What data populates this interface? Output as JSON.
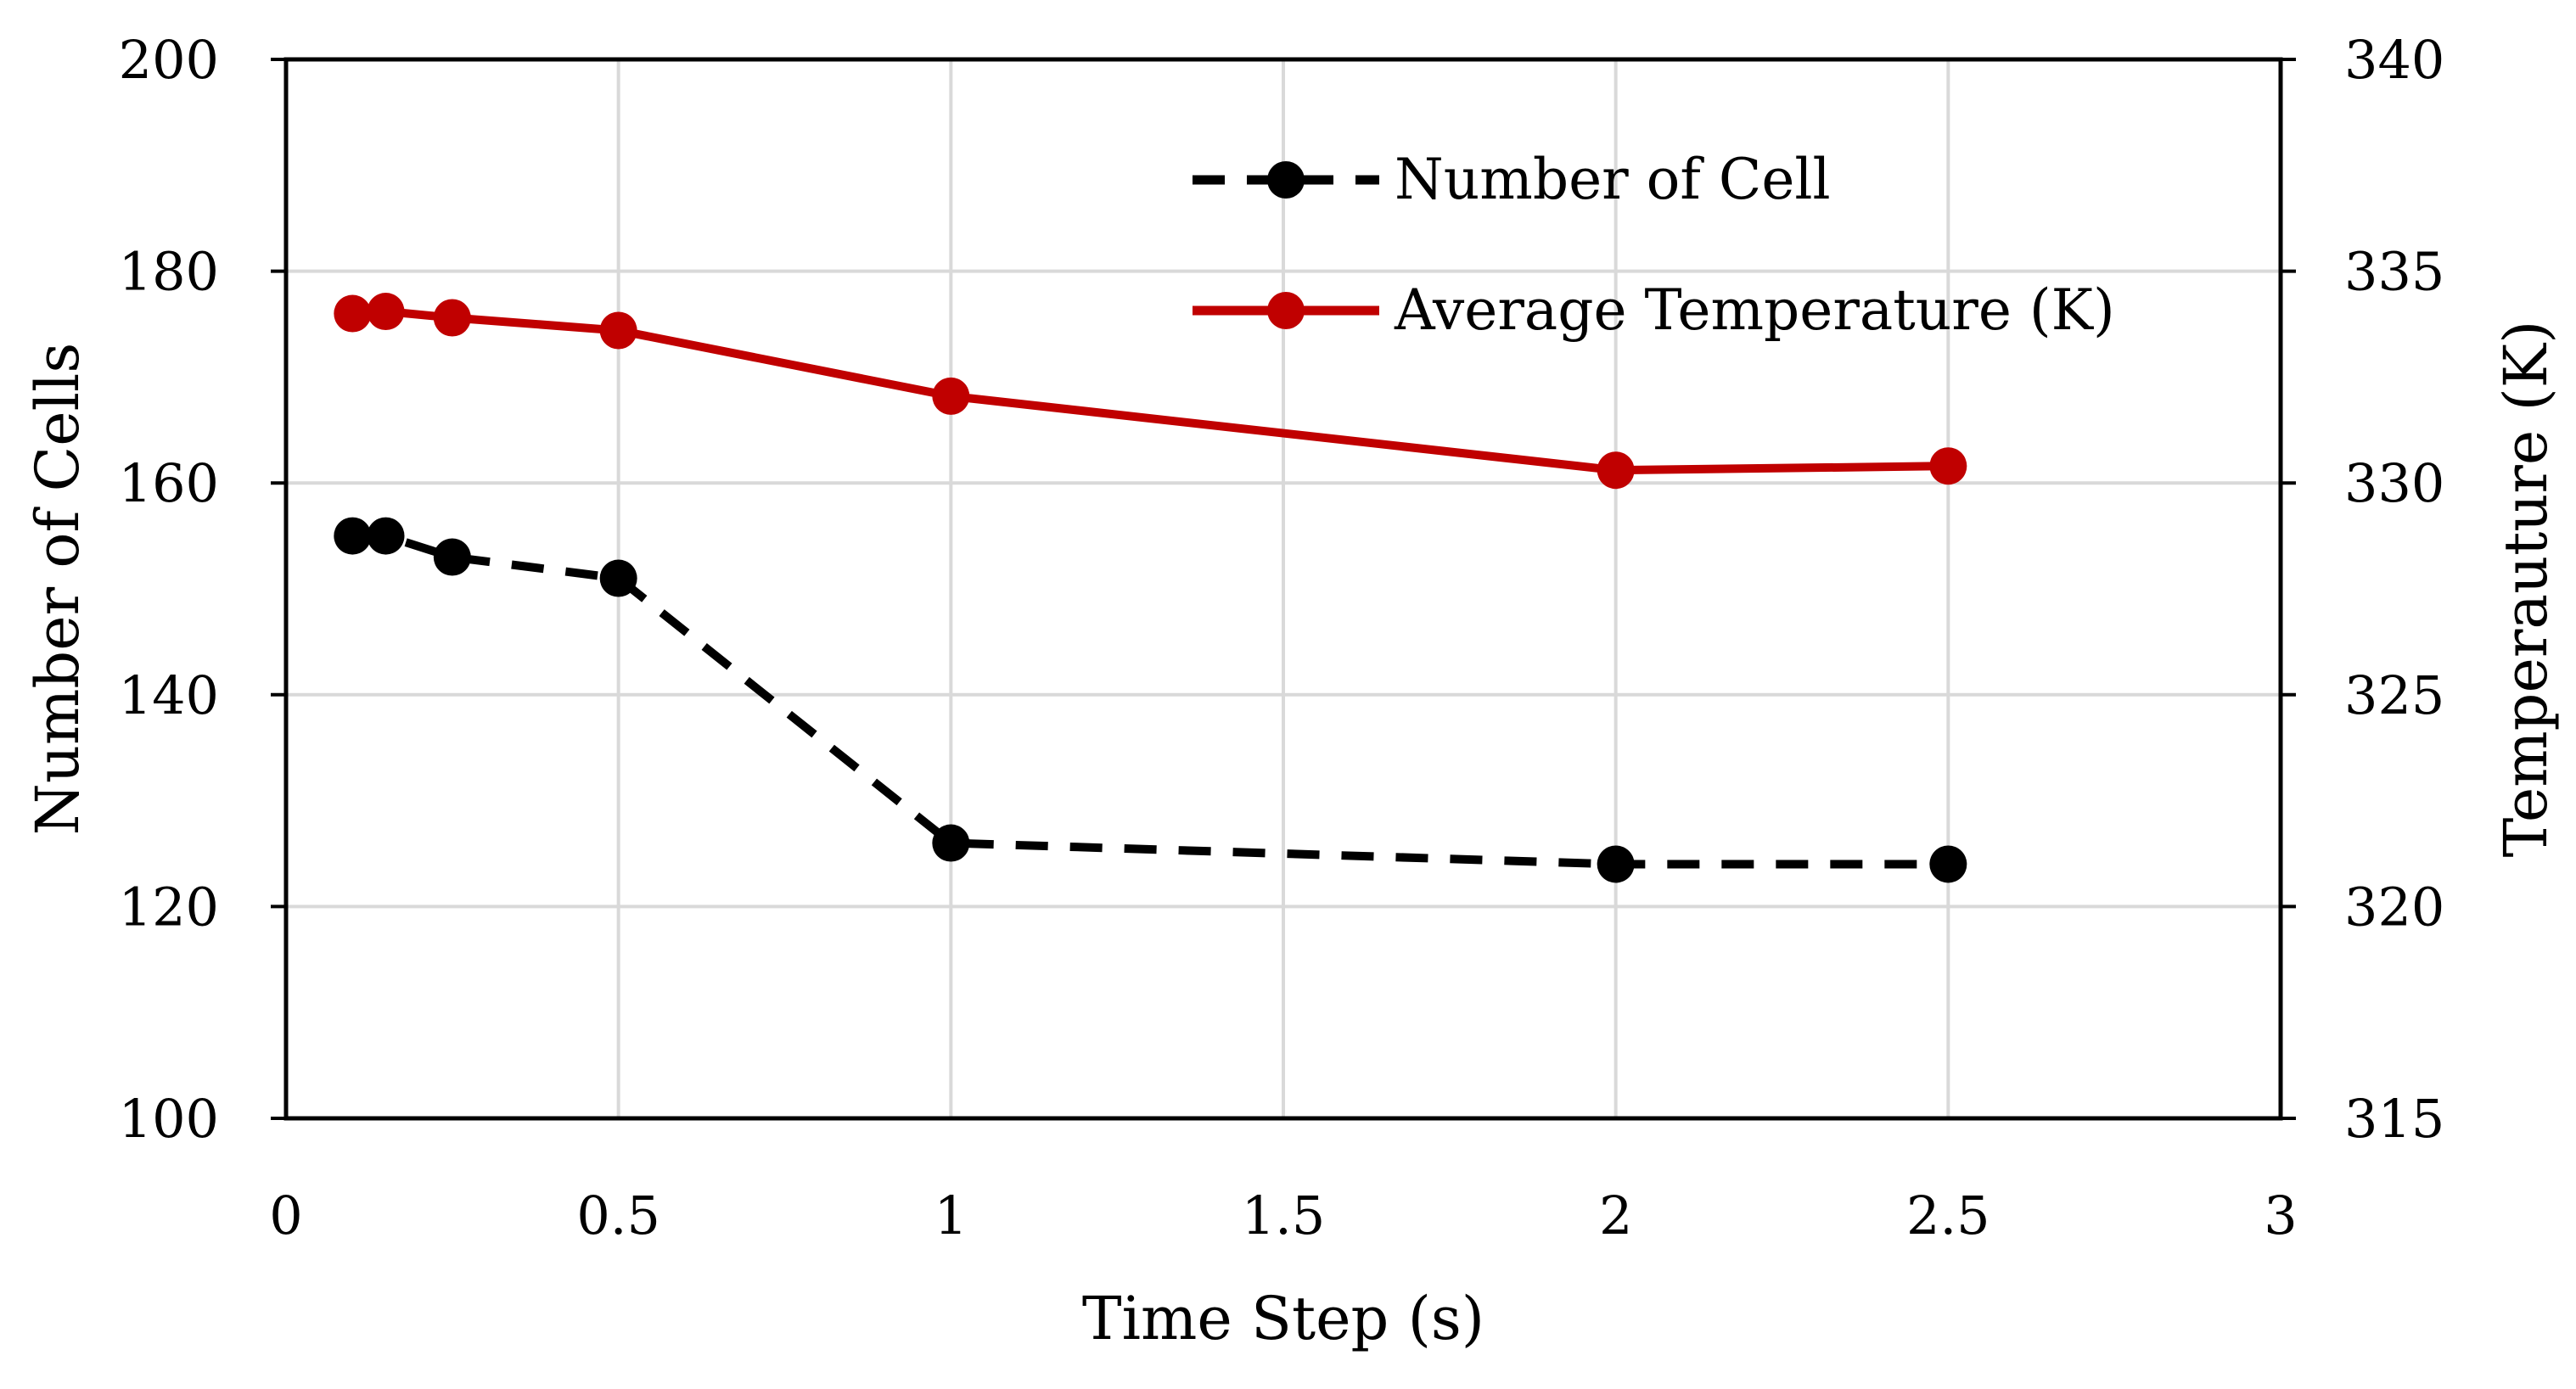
{
  "chart_data": {
    "type": "line",
    "title": "",
    "xlabel": "Time Step (s)",
    "ylabel": "Number of Cells",
    "y2label": "Temperauture (K)",
    "xlim": [
      0,
      3
    ],
    "ylim": [
      100,
      200
    ],
    "y2lim": [
      315,
      340
    ],
    "grid": true,
    "legend_position": "top-right",
    "x_ticks": [
      "0",
      "0.5",
      "1",
      "1.5",
      "2",
      "2.5",
      "3"
    ],
    "y_ticks": [
      "100",
      "120",
      "140",
      "160",
      "180",
      "200"
    ],
    "y2_ticks": [
      "315",
      "320",
      "325",
      "330",
      "335",
      "340"
    ],
    "x": [
      0.1,
      0.15,
      0.25,
      0.5,
      1,
      2,
      2.5
    ],
    "series": [
      {
        "name": "Number of Cell",
        "axis": "left",
        "color": "#000000",
        "style": "dashed",
        "values": [
          155,
          155,
          153,
          151,
          126,
          124,
          124
        ]
      },
      {
        "name": "Average Temperature (K)",
        "axis": "right",
        "color": "#c00000",
        "style": "solid",
        "values": [
          334.0,
          334.05,
          333.9,
          333.6,
          332.05,
          330.3,
          330.4
        ]
      }
    ]
  }
}
